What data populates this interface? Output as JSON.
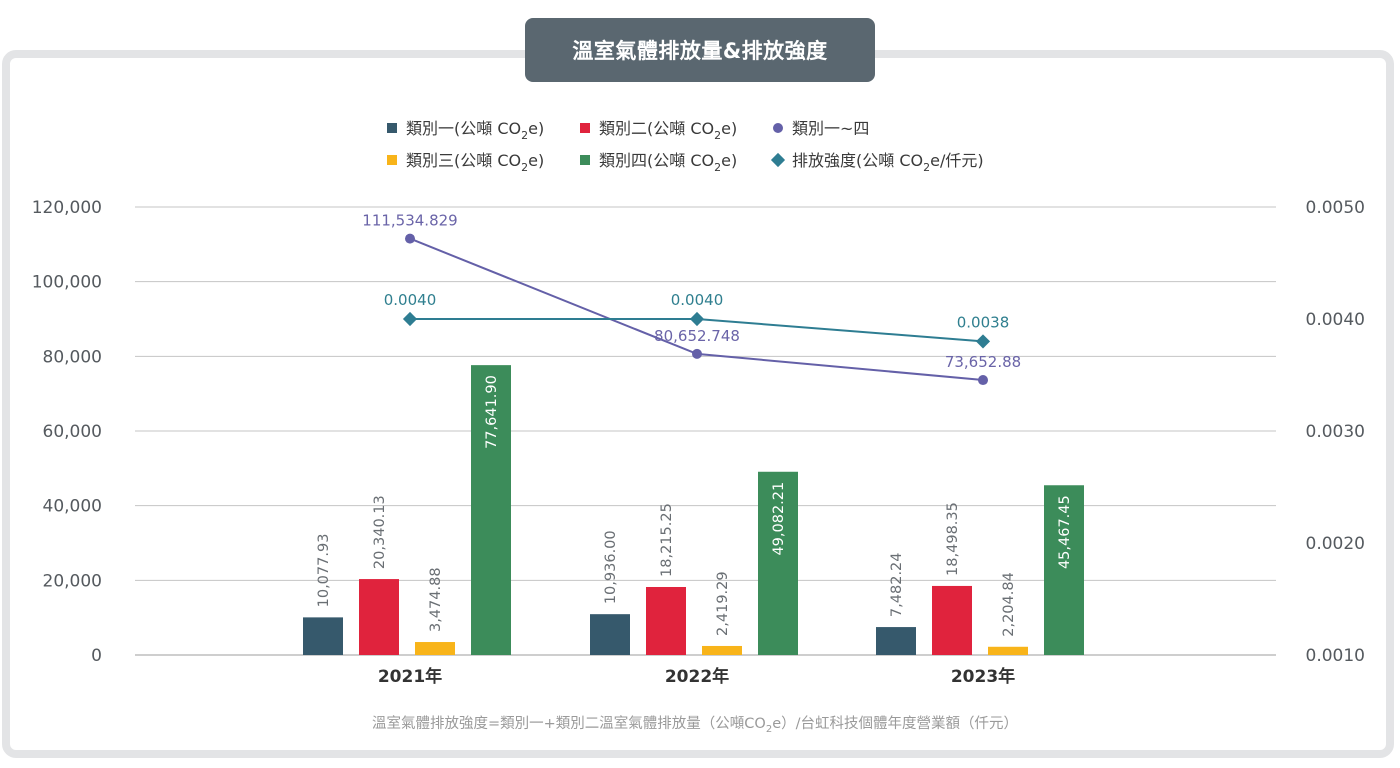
{
  "title": "溫室氣體排放量&排放強度",
  "legend": [
    {
      "pre": "類別一(公噸 CO",
      "sub": "2",
      "post": "e)",
      "shape": "square",
      "color": "#36596c"
    },
    {
      "pre": "類別二(公噸 CO",
      "sub": "2",
      "post": "e)",
      "shape": "square",
      "color": "#e0233d"
    },
    {
      "pre": "類別一~四",
      "sub": "",
      "post": "",
      "shape": "circle",
      "color": "#6460a8"
    },
    {
      "pre": "類別三(公噸 CO",
      "sub": "2",
      "post": "e)",
      "shape": "square",
      "color": "#f8b41a"
    },
    {
      "pre": "類別四(公噸 CO",
      "sub": "2",
      "post": "e)",
      "shape": "square",
      "color": "#3c8c5a"
    },
    {
      "pre": "排放強度(公噸 CO",
      "sub": "2",
      "post": "e/仟元)",
      "shape": "diamond",
      "color": "#2e7d92"
    }
  ],
  "footnote": {
    "pre": "溫室氣體排放強度=類別一+類別二溫室氣體排放量（公噸CO",
    "sub": "2",
    "post": "e）/台虹科技個體年度營業額（仟元）"
  },
  "chart_data": {
    "type": "bar",
    "categories": [
      "2021年",
      "2022年",
      "2023年"
    ],
    "y_left": {
      "min": 0,
      "max": 120000,
      "ticks": [
        0,
        20000,
        40000,
        60000,
        80000,
        100000,
        120000
      ],
      "tick_labels": [
        "0",
        "20,000",
        "40,000",
        "60,000",
        "80,000",
        "100,000",
        "120,000"
      ]
    },
    "y_right": {
      "min": 0.001,
      "max": 0.005,
      "ticks": [
        0.001,
        0.002,
        0.003,
        0.004,
        0.005
      ],
      "tick_labels": [
        "0.0010",
        "0.0020",
        "0.0030",
        "0.0040",
        "0.0050"
      ]
    },
    "grid": true,
    "legend_position": "top",
    "series": [
      {
        "name": "類別一(公噸 CO2e)",
        "type": "bar",
        "color": "#36596c",
        "values": [
          10077.93,
          10936.0,
          7482.24
        ],
        "labels": [
          "10,077.93",
          "10,936.00",
          "7,482.24"
        ]
      },
      {
        "name": "類別二(公噸 CO2e)",
        "type": "bar",
        "color": "#e0233d",
        "values": [
          20340.13,
          18215.25,
          18498.35
        ],
        "labels": [
          "20,340.13",
          "18,215.25",
          "18,498.35"
        ]
      },
      {
        "name": "類別三(公噸 CO2e)",
        "type": "bar",
        "color": "#f8b41a",
        "values": [
          3474.88,
          2419.29,
          2204.84
        ],
        "labels": [
          "3,474.88",
          "2,419.29",
          "2,204.84"
        ]
      },
      {
        "name": "類別四(公噸 CO2e)",
        "type": "bar",
        "color": "#3c8c5a",
        "values": [
          77641.9,
          49082.21,
          45467.45
        ],
        "labels": [
          "77,641.90",
          "49,082.21",
          "45,467.45"
        ]
      },
      {
        "name": "類別一~四",
        "type": "line",
        "axis": "left",
        "color": "#6460a8",
        "values": [
          111534.829,
          80652.748,
          73652.88
        ],
        "labels": [
          "111,534.829",
          "80,652.748",
          "73,652.88"
        ]
      },
      {
        "name": "排放強度(公噸 CO2e/仟元)",
        "type": "line",
        "axis": "right",
        "color": "#2e7d92",
        "values": [
          0.004,
          0.004,
          0.0038
        ],
        "labels": [
          "0.0040",
          "0.0040",
          "0.0038"
        ]
      }
    ]
  }
}
